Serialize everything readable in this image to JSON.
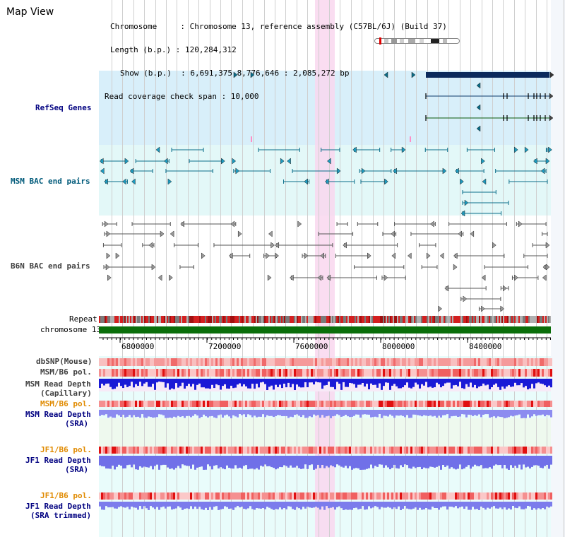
{
  "header": {
    "title": "Map View",
    "info_lines": [
      "Chromosome     : Chromosome 13, reference assembly (C57BL/6J) (Build 37)",
      "Length (b.p.) : 120,284,312",
      "Show (b.p.)  : 6,691,375-8,776,646 : 2,085,272 bp",
      "Read coverage check span : 10,000"
    ]
  },
  "tracks": {
    "refseq": "RefSeq Genes",
    "msm_bac": "MSM BAC end pairs",
    "b6n_bac": "B6N BAC end pairs",
    "repeat": "Repeat",
    "chromosome": "chromosome 13",
    "dbsnp": "dbSNP(Mouse)",
    "msm_b6_pol_1": "MSM/B6 pol.",
    "msm_read_depth_cap_1": "MSM Read Depth",
    "msm_read_depth_cap_2": "(Capillary)",
    "msm_b6_pol_2": "MSM/B6 pol.",
    "msm_read_depth_sra_1": "MSM Read Depth",
    "msm_read_depth_sra_2": "(SRA)",
    "jf1_b6_pol_1": "JF1/B6 pol.",
    "jf1_read_depth_sra_1": "JF1 Read Depth",
    "jf1_read_depth_sra_2": "(SRA)",
    "jf1_b6_pol_2": "JF1/B6 pol.",
    "jf1_read_depth_trim_1": "JF1 Read Depth",
    "jf1_read_depth_trim_2": "(SRA trimmed)"
  },
  "axis": {
    "ticks": [
      "6800000",
      "7200000",
      "7600000",
      "8000000",
      "8400000"
    ]
  },
  "colors": {
    "refseq_label": "#000080",
    "msm_label": "#005a7a",
    "b6n_label": "#404040",
    "orange_label": "#e08a00",
    "blue_label": "#000080",
    "highlight": "#f9d7ef",
    "chrom_bar": "#0a6e0a"
  }
}
